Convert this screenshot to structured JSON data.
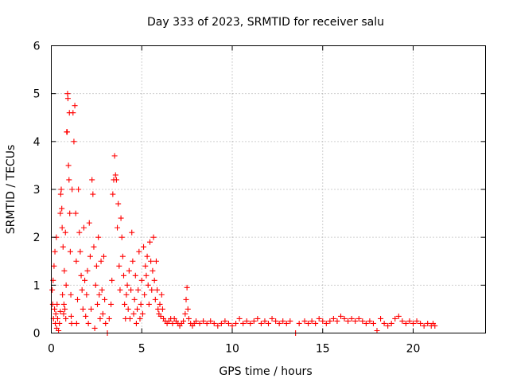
{
  "chart_data": {
    "type": "scatter",
    "title": "Day 333 of 2023, SRMTID for receiver salu",
    "xlabel": "GPS time / hours",
    "ylabel": "SRMTID / TECUs",
    "xlim": [
      0,
      24
    ],
    "ylim": [
      0,
      6
    ],
    "xticks": [
      0,
      5,
      10,
      15,
      20
    ],
    "yticks": [
      0,
      1,
      2,
      3,
      4,
      5,
      6
    ],
    "grid": true,
    "marker": "+",
    "color": "#ff0000",
    "series": [
      {
        "name": "SRMTID",
        "points": [
          [
            0.05,
            0.9
          ],
          [
            0.08,
            0.6
          ],
          [
            0.1,
            1.1
          ],
          [
            0.12,
            0.3
          ],
          [
            0.15,
            1.4
          ],
          [
            0.18,
            0.5
          ],
          [
            0.2,
            1.7
          ],
          [
            0.22,
            0.2
          ],
          [
            0.25,
            0.4
          ],
          [
            0.28,
            2.0
          ],
          [
            0.3,
            0.1
          ],
          [
            0.32,
            0.6
          ],
          [
            0.35,
            0.3
          ],
          [
            0.4,
            0.05
          ],
          [
            0.45,
            0.2
          ],
          [
            0.5,
            0.45
          ],
          [
            0.5,
            2.5
          ],
          [
            0.52,
            2.9
          ],
          [
            0.55,
            3.0
          ],
          [
            0.58,
            2.6
          ],
          [
            0.6,
            2.2
          ],
          [
            0.62,
            0.8
          ],
          [
            0.65,
            1.8
          ],
          [
            0.68,
            0.4
          ],
          [
            0.7,
            0.6
          ],
          [
            0.72,
            1.3
          ],
          [
            0.75,
            0.5
          ],
          [
            0.78,
            2.1
          ],
          [
            0.8,
            0.3
          ],
          [
            0.82,
            1.0
          ],
          [
            0.85,
            4.2
          ],
          [
            0.88,
            4.2
          ],
          [
            0.9,
            5.0
          ],
          [
            0.92,
            4.9
          ],
          [
            0.95,
            3.5
          ],
          [
            0.98,
            3.2
          ],
          [
            1.0,
            4.6
          ],
          [
            1.02,
            2.5
          ],
          [
            1.05,
            1.7
          ],
          [
            1.08,
            0.8
          ],
          [
            1.1,
            0.35
          ],
          [
            1.12,
            0.2
          ],
          [
            1.15,
            3.0
          ],
          [
            1.2,
            4.6
          ],
          [
            1.25,
            4.0
          ],
          [
            1.3,
            4.75
          ],
          [
            1.35,
            2.5
          ],
          [
            1.38,
            1.5
          ],
          [
            1.4,
            0.2
          ],
          [
            1.45,
            0.7
          ],
          [
            1.5,
            3.0
          ],
          [
            1.55,
            2.1
          ],
          [
            1.6,
            1.7
          ],
          [
            1.65,
            1.2
          ],
          [
            1.7,
            0.9
          ],
          [
            1.75,
            0.5
          ],
          [
            1.8,
            2.2
          ],
          [
            1.85,
            1.1
          ],
          [
            1.9,
            0.35
          ],
          [
            1.95,
            0.8
          ],
          [
            2.0,
            1.3
          ],
          [
            2.05,
            0.2
          ],
          [
            2.1,
            2.3
          ],
          [
            2.15,
            1.6
          ],
          [
            2.2,
            0.5
          ],
          [
            2.25,
            3.2
          ],
          [
            2.3,
            2.9
          ],
          [
            2.35,
            1.8
          ],
          [
            2.4,
            0.1
          ],
          [
            2.45,
            1.0
          ],
          [
            2.5,
            1.4
          ],
          [
            2.55,
            0.6
          ],
          [
            2.6,
            2.0
          ],
          [
            2.65,
            0.8
          ],
          [
            2.7,
            0.3
          ],
          [
            2.75,
            1.5
          ],
          [
            2.8,
            0.9
          ],
          [
            2.85,
            0.4
          ],
          [
            2.9,
            1.6
          ],
          [
            2.95,
            0.7
          ],
          [
            3.0,
            0.2
          ],
          [
            3.1,
            0.0
          ],
          [
            3.2,
            0.3
          ],
          [
            3.3,
            0.6
          ],
          [
            3.35,
            1.1
          ],
          [
            3.4,
            2.9
          ],
          [
            3.45,
            3.2
          ],
          [
            3.5,
            3.7
          ],
          [
            3.55,
            3.3
          ],
          [
            3.6,
            3.2
          ],
          [
            3.65,
            2.2
          ],
          [
            3.7,
            2.7
          ],
          [
            3.75,
            1.4
          ],
          [
            3.8,
            0.9
          ],
          [
            3.85,
            2.4
          ],
          [
            3.9,
            2.0
          ],
          [
            3.95,
            1.6
          ],
          [
            4.0,
            1.2
          ],
          [
            4.05,
            0.6
          ],
          [
            4.1,
            0.3
          ],
          [
            4.15,
            0.8
          ],
          [
            4.2,
            1.0
          ],
          [
            4.25,
            0.5
          ],
          [
            4.3,
            1.3
          ],
          [
            4.35,
            0.3
          ],
          [
            4.4,
            0.9
          ],
          [
            4.45,
            2.1
          ],
          [
            4.5,
            1.5
          ],
          [
            4.55,
            0.4
          ],
          [
            4.6,
            0.7
          ],
          [
            4.65,
            1.2
          ],
          [
            4.7,
            0.2
          ],
          [
            4.75,
            0.5
          ],
          [
            4.8,
            0.9
          ],
          [
            4.85,
            1.7
          ],
          [
            4.9,
            0.3
          ],
          [
            4.95,
            0.6
          ],
          [
            5.0,
            1.1
          ],
          [
            5.05,
            0.4
          ],
          [
            5.1,
            1.8
          ],
          [
            5.15,
            0.8
          ],
          [
            5.2,
            1.4
          ],
          [
            5.25,
            1.2
          ],
          [
            5.3,
            1.6
          ],
          [
            5.35,
            1.0
          ],
          [
            5.4,
            0.6
          ],
          [
            5.45,
            1.9
          ],
          [
            5.5,
            1.5
          ],
          [
            5.55,
            0.9
          ],
          [
            5.6,
            1.3
          ],
          [
            5.65,
            2.0
          ],
          [
            5.7,
            1.1
          ],
          [
            5.75,
            0.7
          ],
          [
            5.8,
            1.5
          ],
          [
            5.85,
            0.9
          ],
          [
            5.9,
            0.5
          ],
          [
            5.95,
            0.4
          ],
          [
            6.0,
            0.6
          ],
          [
            6.05,
            0.35
          ],
          [
            6.1,
            0.8
          ],
          [
            6.15,
            0.5
          ],
          [
            6.2,
            0.3
          ],
          [
            6.3,
            0.25
          ],
          [
            6.4,
            0.2
          ],
          [
            6.5,
            0.25
          ],
          [
            6.6,
            0.3
          ],
          [
            6.7,
            0.2
          ],
          [
            6.8,
            0.3
          ],
          [
            6.9,
            0.25
          ],
          [
            7.0,
            0.2
          ],
          [
            7.1,
            0.15
          ],
          [
            7.2,
            0.2
          ],
          [
            7.3,
            0.25
          ],
          [
            7.4,
            0.4
          ],
          [
            7.45,
            0.7
          ],
          [
            7.5,
            0.95
          ],
          [
            7.55,
            0.5
          ],
          [
            7.6,
            0.3
          ],
          [
            7.7,
            0.2
          ],
          [
            7.8,
            0.15
          ],
          [
            7.9,
            0.2
          ],
          [
            8.0,
            0.25
          ],
          [
            8.2,
            0.2
          ],
          [
            8.4,
            0.25
          ],
          [
            8.6,
            0.2
          ],
          [
            8.8,
            0.25
          ],
          [
            9.0,
            0.2
          ],
          [
            9.2,
            0.15
          ],
          [
            9.4,
            0.2
          ],
          [
            9.6,
            0.25
          ],
          [
            9.8,
            0.2
          ],
          [
            10.0,
            0.15
          ],
          [
            10.2,
            0.2
          ],
          [
            10.4,
            0.3
          ],
          [
            10.6,
            0.2
          ],
          [
            10.8,
            0.25
          ],
          [
            11.0,
            0.2
          ],
          [
            11.2,
            0.25
          ],
          [
            11.4,
            0.3
          ],
          [
            11.6,
            0.2
          ],
          [
            11.8,
            0.25
          ],
          [
            12.0,
            0.2
          ],
          [
            12.2,
            0.3
          ],
          [
            12.4,
            0.25
          ],
          [
            12.6,
            0.2
          ],
          [
            12.8,
            0.25
          ],
          [
            13.0,
            0.2
          ],
          [
            13.2,
            0.25
          ],
          [
            13.5,
            0.0
          ],
          [
            13.7,
            0.2
          ],
          [
            14.0,
            0.25
          ],
          [
            14.2,
            0.2
          ],
          [
            14.4,
            0.25
          ],
          [
            14.6,
            0.2
          ],
          [
            14.8,
            0.3
          ],
          [
            15.0,
            0.25
          ],
          [
            15.2,
            0.2
          ],
          [
            15.4,
            0.25
          ],
          [
            15.6,
            0.3
          ],
          [
            15.8,
            0.25
          ],
          [
            16.0,
            0.35
          ],
          [
            16.2,
            0.3
          ],
          [
            16.4,
            0.25
          ],
          [
            16.6,
            0.3
          ],
          [
            16.8,
            0.25
          ],
          [
            17.0,
            0.3
          ],
          [
            17.2,
            0.25
          ],
          [
            17.4,
            0.2
          ],
          [
            17.6,
            0.25
          ],
          [
            17.8,
            0.2
          ],
          [
            18.0,
            0.05
          ],
          [
            18.2,
            0.3
          ],
          [
            18.4,
            0.2
          ],
          [
            18.6,
            0.15
          ],
          [
            18.8,
            0.2
          ],
          [
            19.0,
            0.3
          ],
          [
            19.2,
            0.35
          ],
          [
            19.4,
            0.25
          ],
          [
            19.6,
            0.2
          ],
          [
            19.8,
            0.25
          ],
          [
            20.0,
            0.2
          ],
          [
            20.2,
            0.25
          ],
          [
            20.4,
            0.2
          ],
          [
            20.6,
            0.15
          ],
          [
            20.8,
            0.2
          ],
          [
            21.0,
            0.15
          ],
          [
            21.1,
            0.2
          ],
          [
            21.2,
            0.15
          ]
        ]
      }
    ]
  }
}
